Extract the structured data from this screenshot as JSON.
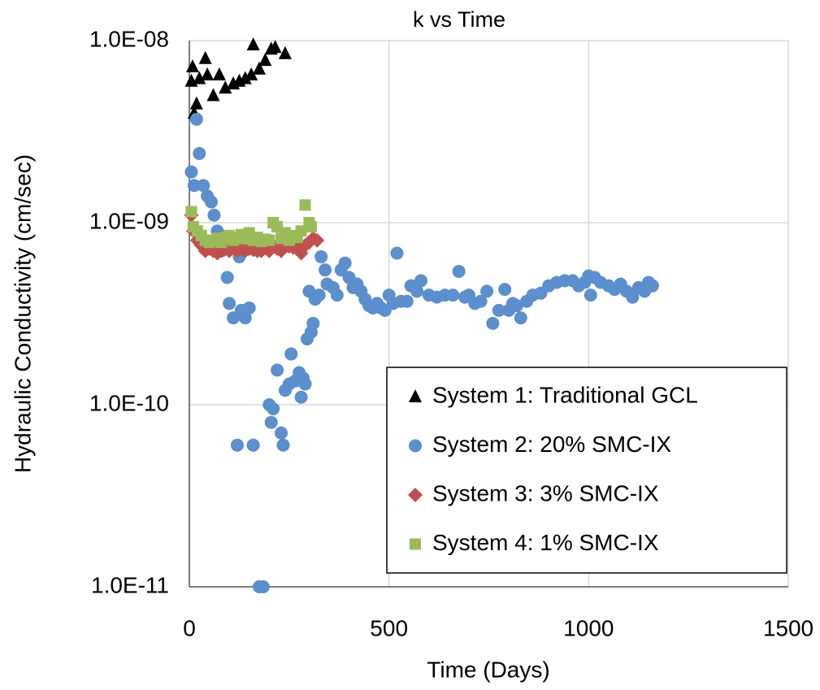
{
  "chart_data": {
    "type": "scatter",
    "title": "k vs Time",
    "x_label": "Time (Days)",
    "y_label": "Hydraulic Conductivity (cm/sec)",
    "xlim": [
      0,
      1500
    ],
    "xticks": [
      0,
      500,
      1000,
      1500
    ],
    "ylim": [
      1e-11,
      1e-08
    ],
    "ylog": true,
    "yticks": [
      {
        "value": 1e-11,
        "label": "1.0E-11"
      },
      {
        "value": 1e-10,
        "label": "1.0E-10"
      },
      {
        "value": 1e-09,
        "label": "1.0E-09"
      },
      {
        "value": 1e-08,
        "label": "1.0E-08"
      }
    ],
    "grid": true,
    "legend": "lower right",
    "series": [
      {
        "name": "System 1: Traditional GCL",
        "color": "#000000",
        "marker": "triangle",
        "x": [
          5,
          8,
          12,
          18,
          25,
          40,
          45,
          60,
          75,
          90,
          110,
          125,
          140,
          155,
          160,
          175,
          190,
          205,
          215,
          240
        ],
        "values": [
          6e-09,
          7.2e-09,
          4e-09,
          4.5e-09,
          6.2e-09,
          8e-09,
          6.5e-09,
          5e-09,
          6.5e-09,
          5.5e-09,
          5.8e-09,
          6e-09,
          6.2e-09,
          6.5e-09,
          9.5e-09,
          7e-09,
          7.8e-09,
          9e-09,
          9.2e-09,
          8.5e-09
        ]
      },
      {
        "name": "System 2: 20% SMC-IX",
        "color": "#5b8fcd",
        "marker": "circle",
        "x": [
          5,
          12,
          18,
          25,
          35,
          45,
          55,
          62,
          70,
          80,
          95,
          100,
          110,
          120,
          125,
          130,
          140,
          150,
          160,
          175,
          185,
          200,
          205,
          210,
          220,
          230,
          235,
          240,
          250,
          255,
          265,
          275,
          280,
          285,
          290,
          295,
          300,
          305,
          310,
          315,
          325,
          330,
          340,
          345,
          360,
          370,
          380,
          390,
          400,
          410,
          420,
          430,
          440,
          450,
          460,
          470,
          480,
          490,
          500,
          510,
          520,
          530,
          545,
          555,
          570,
          580,
          600,
          620,
          640,
          660,
          675,
          690,
          700,
          715,
          730,
          745,
          760,
          775,
          790,
          800,
          810,
          820,
          830,
          845,
          860,
          880,
          900,
          920,
          940,
          960,
          975,
          990,
          1000,
          1005,
          1015,
          1030,
          1050,
          1065,
          1080,
          1095,
          1110,
          1125,
          1140,
          1150,
          1160
        ],
        "values": [
          1.9e-09,
          1.6e-09,
          3.7e-09,
          2.4e-09,
          1.6e-09,
          1.4e-09,
          1.3e-09,
          1.1e-09,
          9e-10,
          7e-10,
          5e-10,
          3.6e-10,
          3e-10,
          6e-11,
          6.5e-10,
          3.3e-10,
          3e-10,
          3.4e-10,
          6e-11,
          1e-11,
          1e-11,
          1e-10,
          8e-11,
          9.5e-11,
          1.55e-10,
          7e-11,
          6e-11,
          1.2e-10,
          1.3e-10,
          1.9e-10,
          1.35e-10,
          1.5e-10,
          1.1e-10,
          1.4e-10,
          1.3e-10,
          2.3e-10,
          4.2e-10,
          2.5e-10,
          2.8e-10,
          3.8e-10,
          4e-10,
          6.5e-10,
          5.5e-10,
          4.6e-10,
          4.4e-10,
          4e-10,
          5.5e-10,
          6e-10,
          5e-10,
          4.4e-10,
          4.6e-10,
          4.2e-10,
          3.8e-10,
          3.5e-10,
          3.4e-10,
          3.6e-10,
          3.4e-10,
          3.3e-10,
          4e-10,
          3.6e-10,
          6.8e-10,
          3.7e-10,
          3.7e-10,
          4.5e-10,
          4.2e-10,
          4.8e-10,
          4e-10,
          3.9e-10,
          4e-10,
          4e-10,
          5.4e-10,
          3.9e-10,
          4e-10,
          3.6e-10,
          3.7e-10,
          4.2e-10,
          2.8e-10,
          3.3e-10,
          4.3e-10,
          3.3e-10,
          3.6e-10,
          3.5e-10,
          3e-10,
          3.7e-10,
          4e-10,
          4.1e-10,
          4.5e-10,
          4.7e-10,
          4.8e-10,
          4.8e-10,
          4.5e-10,
          4.7e-10,
          5.1e-10,
          4e-10,
          5e-10,
          4.7e-10,
          4.5e-10,
          4.3e-10,
          4.6e-10,
          4.2e-10,
          3.9e-10,
          4.4e-10,
          4.2e-10,
          4.7e-10,
          4.5e-10
        ]
      },
      {
        "name": "System 3: 3% SMC-IX",
        "color": "#c0504d",
        "marker": "diamond",
        "x": [
          5,
          10,
          20,
          30,
          40,
          50,
          60,
          70,
          80,
          90,
          100,
          110,
          120,
          130,
          140,
          150,
          160,
          170,
          180,
          190,
          200,
          210,
          220,
          230,
          240,
          250,
          260,
          270,
          280,
          290,
          300,
          310,
          320
        ],
        "values": [
          1.1e-09,
          9e-10,
          8e-10,
          7.5e-10,
          7e-10,
          7.2e-10,
          7e-10,
          6.8e-10,
          7e-10,
          7.2e-10,
          7e-10,
          7.5e-10,
          7e-10,
          7.2e-10,
          7e-10,
          7.2e-10,
          7.1e-10,
          7e-10,
          7e-10,
          7.3e-10,
          7e-10,
          7.5e-10,
          7.2e-10,
          7e-10,
          7.6e-10,
          7.4e-10,
          7.3e-10,
          7.5e-10,
          6.8e-10,
          7.5e-10,
          7.8e-10,
          8.2e-10,
          8e-10
        ]
      },
      {
        "name": "System 4: 1% SMC-IX",
        "color": "#9bbb59",
        "marker": "square",
        "x": [
          5,
          10,
          20,
          30,
          40,
          50,
          60,
          70,
          80,
          90,
          100,
          110,
          120,
          130,
          140,
          150,
          160,
          170,
          180,
          190,
          200,
          210,
          220,
          230,
          240,
          250,
          260,
          270,
          280,
          290,
          300,
          305
        ],
        "values": [
          1.15e-09,
          9.5e-10,
          9e-10,
          8.5e-10,
          8e-10,
          7.8e-10,
          8e-10,
          8.2e-10,
          7.8e-10,
          8.3e-10,
          8.5e-10,
          8e-10,
          8.2e-10,
          8.6e-10,
          8.2e-10,
          8.8e-10,
          8e-10,
          8.3e-10,
          7.9e-10,
          8.1e-10,
          8e-10,
          1e-09,
          9.5e-10,
          8.2e-10,
          8.8e-10,
          8e-10,
          8.5e-10,
          8.3e-10,
          9e-10,
          1.25e-09,
          1e-09,
          9.5e-10
        ]
      }
    ]
  }
}
